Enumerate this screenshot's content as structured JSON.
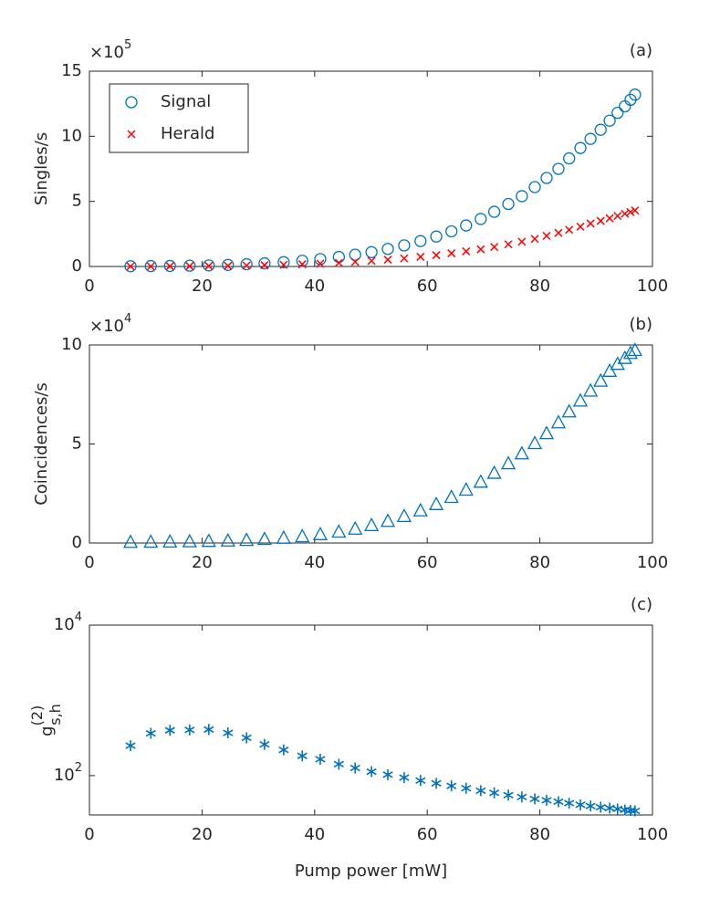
{
  "chart_data": [
    {
      "type": "scatter",
      "panel_label": "(a)",
      "ylabel": "Singles/s",
      "y_multiplier": {
        "base": "×10",
        "exponent": "5"
      },
      "x": [
        7.3,
        10.9,
        14.3,
        17.8,
        21.2,
        24.6,
        27.9,
        31.1,
        34.5,
        37.8,
        41,
        44.3,
        47.2,
        50.1,
        53,
        55.9,
        58.8,
        61.6,
        64.3,
        66.9,
        69.5,
        71.9,
        74.4,
        76.8,
        79.1,
        81.2,
        83.3,
        85.2,
        87.2,
        89,
        90.8,
        92.4,
        93.8,
        95.1,
        96.1,
        96.9
      ],
      "series": [
        {
          "name": "Signal",
          "color": "#0072BD",
          "marker": "o",
          "values": [
            0.02,
            0.03,
            0.04,
            0.06,
            0.08,
            0.12,
            0.17,
            0.24,
            0.33,
            0.44,
            0.57,
            0.73,
            0.9,
            1.1,
            1.35,
            1.62,
            1.95,
            2.3,
            2.7,
            3.15,
            3.65,
            4.2,
            4.8,
            5.4,
            6.1,
            6.8,
            7.5,
            8.3,
            9.1,
            9.8,
            10.5,
            11.2,
            11.8,
            12.3,
            12.8,
            13.2
          ]
        },
        {
          "name": "Herald",
          "color": "#FF0000",
          "marker": "x",
          "values": [
            0.01,
            0.01,
            0.02,
            0.03,
            0.04,
            0.05,
            0.07,
            0.1,
            0.13,
            0.17,
            0.22,
            0.28,
            0.35,
            0.43,
            0.52,
            0.62,
            0.74,
            0.87,
            1.01,
            1.16,
            1.32,
            1.5,
            1.7,
            1.9,
            2.12,
            2.35,
            2.58,
            2.82,
            3.06,
            3.3,
            3.5,
            3.7,
            3.88,
            4.05,
            4.18,
            4.3
          ]
        }
      ],
      "xlim": [
        0,
        100
      ],
      "xticks": [
        0,
        20,
        40,
        60,
        80,
        100
      ],
      "ylim": [
        0,
        15
      ],
      "yticks": [
        0,
        5,
        10,
        15
      ],
      "legend": "northwest"
    },
    {
      "type": "scatter",
      "panel_label": "(b)",
      "ylabel": "Coincidences/s",
      "y_multiplier": {
        "base": "×10",
        "exponent": "4"
      },
      "x": [
        7.3,
        10.9,
        14.3,
        17.8,
        21.2,
        24.6,
        27.9,
        31.1,
        34.5,
        37.8,
        41,
        44.3,
        47.2,
        50.1,
        53,
        55.9,
        58.8,
        61.6,
        64.3,
        66.9,
        69.5,
        71.9,
        74.4,
        76.8,
        79.1,
        81.2,
        83.3,
        85.2,
        87.2,
        89,
        90.8,
        92.4,
        93.8,
        95.1,
        96.1,
        96.9
      ],
      "series": [
        {
          "name": "Coincidences",
          "color": "#0072BD",
          "marker": "^",
          "values": [
            0.01,
            0.02,
            0.03,
            0.04,
            0.06,
            0.08,
            0.11,
            0.16,
            0.22,
            0.3,
            0.4,
            0.53,
            0.68,
            0.86,
            1.07,
            1.32,
            1.6,
            1.92,
            2.28,
            2.65,
            3.05,
            3.5,
            3.98,
            4.48,
            5.0,
            5.5,
            6.05,
            6.6,
            7.15,
            7.65,
            8.15,
            8.65,
            9.0,
            9.3,
            9.55,
            9.7
          ]
        }
      ],
      "xlim": [
        0,
        100
      ],
      "xticks": [
        0,
        20,
        40,
        60,
        80,
        100
      ],
      "ylim": [
        0,
        10
      ],
      "yticks": [
        0,
        5,
        10
      ]
    },
    {
      "type": "scatter",
      "panel_label": "(c)",
      "ylabel": {
        "base": "g",
        "sup": "(2)",
        "sub": "s,h"
      },
      "xlabel": "Pump power [mW]",
      "log_y": true,
      "x": [
        7.3,
        10.9,
        14.3,
        17.8,
        21.2,
        24.6,
        27.9,
        31.1,
        34.5,
        37.8,
        41,
        44.3,
        47.2,
        50.1,
        53,
        55.9,
        58.8,
        61.6,
        64.3,
        66.9,
        69.5,
        71.9,
        74.4,
        76.8,
        79.1,
        81.2,
        83.3,
        85.2,
        87.2,
        89,
        90.8,
        92.4,
        93.8,
        95.1,
        96.1,
        96.9
      ],
      "series": [
        {
          "name": "g2",
          "color": "#0072BD",
          "marker": "*",
          "values": [
            250,
            365,
            400,
            405,
            410,
            370,
            318,
            260,
            220,
            183,
            165,
            142,
            126,
            113,
            103,
            94,
            86,
            79,
            73,
            68,
            63,
            59,
            55,
            52,
            49,
            47,
            45,
            43,
            41,
            39.5,
            38,
            37,
            36,
            35,
            34.5,
            34
          ]
        }
      ],
      "xlim": [
        0,
        100
      ],
      "xticks": [
        0,
        20,
        40,
        60,
        80,
        100
      ],
      "ylim": [
        30,
        10000
      ],
      "yticks": [
        {
          "value": 100,
          "base": "10",
          "exponent": "2"
        },
        {
          "value": 10000,
          "base": "10",
          "exponent": "4"
        }
      ]
    }
  ]
}
